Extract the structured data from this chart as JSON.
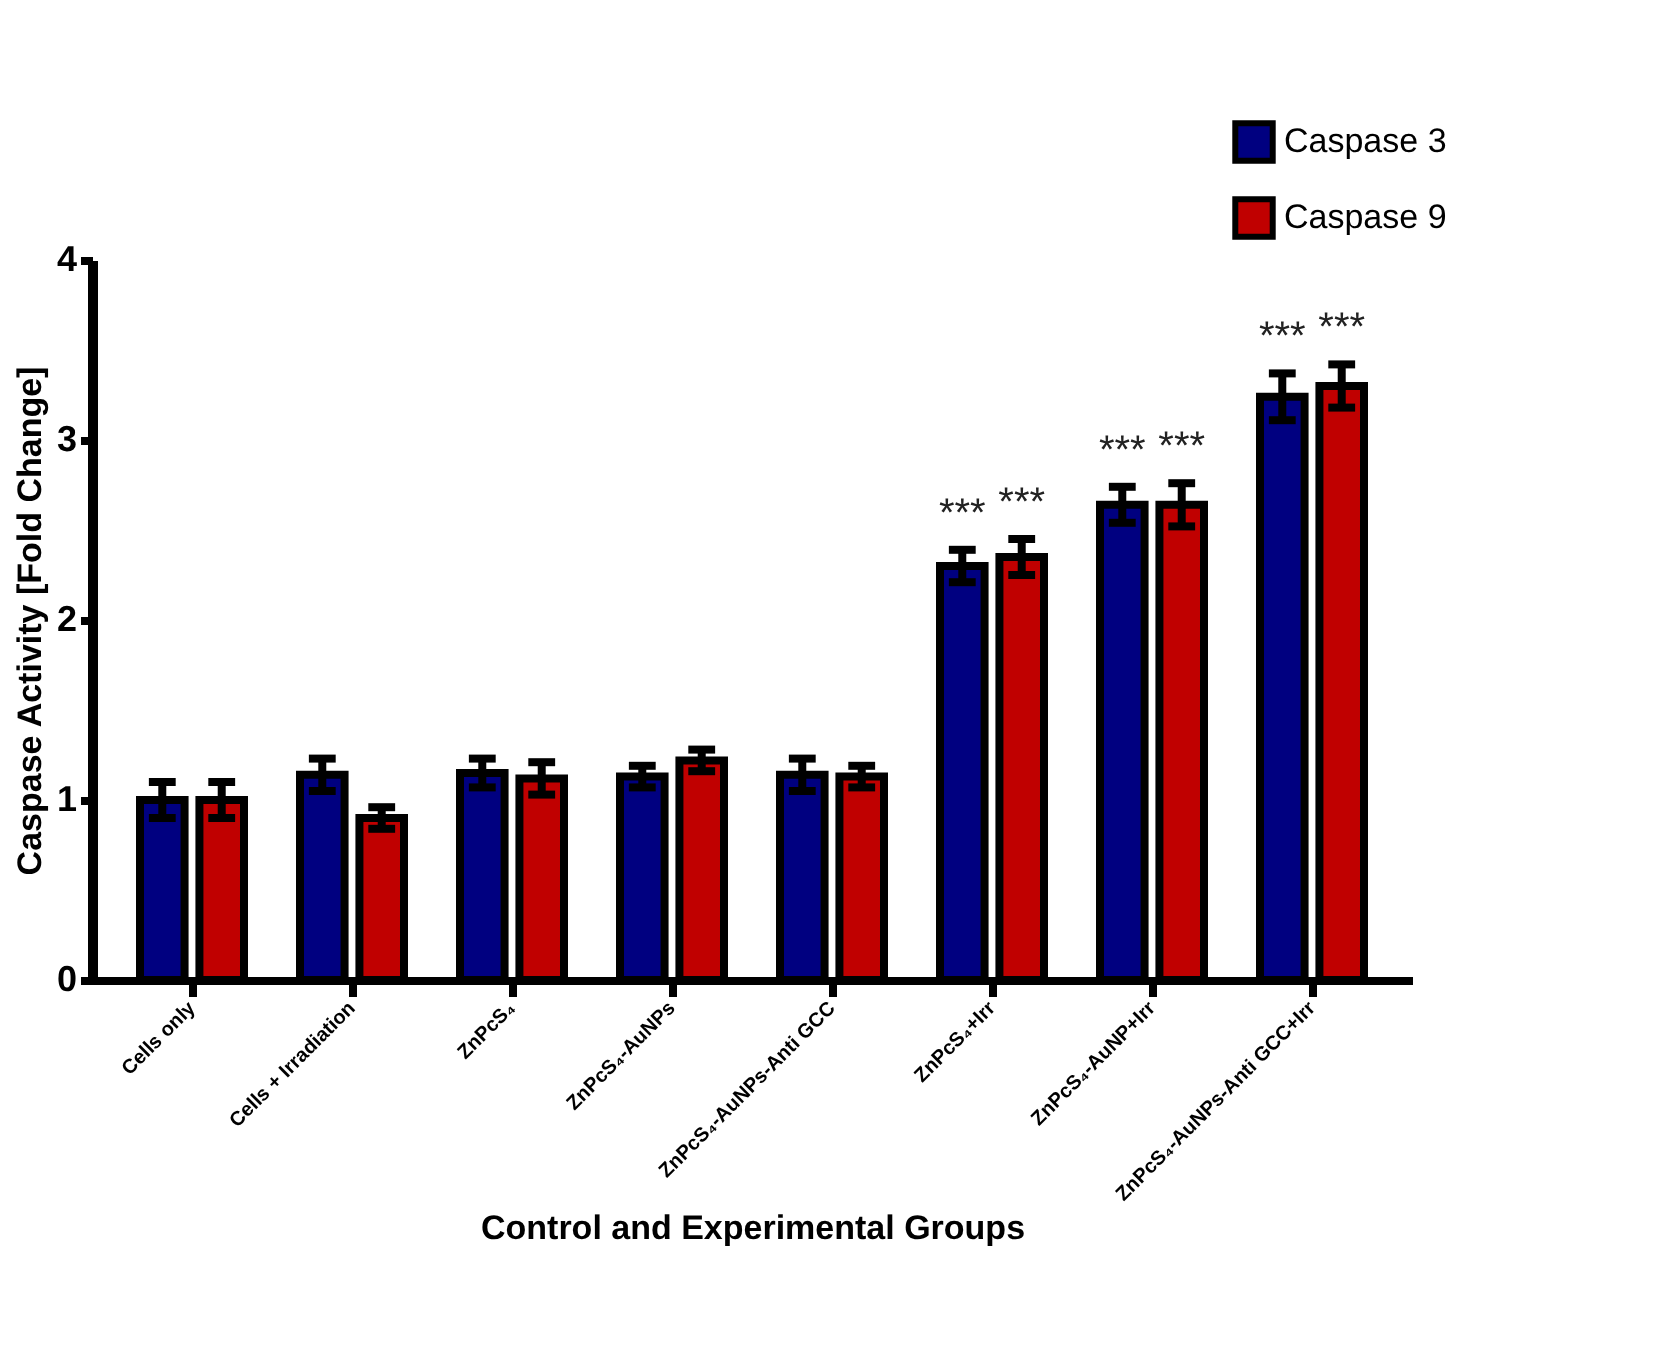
{
  "chart_data": {
    "type": "bar",
    "xlabel": "Control and Experimental Groups",
    "ylabel": "Caspase Activity [Fold Change]",
    "categories": [
      "Cells only",
      "Cells + Irradiation",
      "ZnPcS₄",
      "ZnPcS₄-AuNPs",
      "ZnPcS₄-AuNPs-Anti GCC",
      "ZnPcS₄+Irr",
      "ZnPcS₄-AuNP+Irr",
      "ZnPcS₄-AuNPs-Anti GCC+Irr"
    ],
    "series": [
      {
        "name": "Caspase 3",
        "color": "#000080",
        "values": [
          1.0,
          1.14,
          1.15,
          1.13,
          1.14,
          2.3,
          2.64,
          3.24
        ],
        "errors": [
          0.1,
          0.09,
          0.08,
          0.06,
          0.09,
          0.09,
          0.1,
          0.13
        ]
      },
      {
        "name": "Caspase 9",
        "color": "#c00000",
        "values": [
          1.0,
          0.9,
          1.12,
          1.22,
          1.13,
          2.35,
          2.64,
          3.3
        ],
        "errors": [
          0.1,
          0.06,
          0.09,
          0.06,
          0.06,
          0.1,
          0.12,
          0.12
        ]
      }
    ],
    "annotations": [
      {
        "text": "***",
        "x": "ZnPcS₄+Irr",
        "y": 2.3
      },
      {
        "text": "***",
        "x": "ZnPcS₄+Irr",
        "y": 2.35
      },
      {
        "text": "***",
        "x": "ZnPcS₄-AuNP+Irr",
        "y": 2.64
      },
      {
        "text": "***",
        "x": "ZnPcS₄-AuNP+Irr",
        "y": 2.64
      },
      {
        "text": "***",
        "x": "ZnPcS₄-AuNPs-Anti GCC+Irr",
        "y": 3.24
      },
      {
        "text": "***",
        "x": "ZnPcS₄-AuNPs-Anti GCC+Irr",
        "y": 3.3
      }
    ],
    "ylim": [
      0,
      4
    ],
    "yticks": [
      0,
      1,
      2,
      3,
      4
    ],
    "grid": false,
    "legend": "top right"
  }
}
